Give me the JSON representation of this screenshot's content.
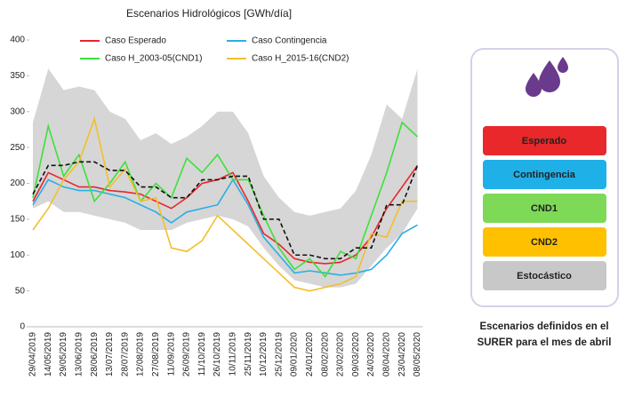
{
  "chart_data": {
    "type": "line",
    "title": "Escenarios Hidrológicos [GWh/día]",
    "categories": [
      "29/04/2019",
      "14/05/2019",
      "29/05/2019",
      "13/06/2019",
      "28/06/2019",
      "13/07/2019",
      "28/07/2019",
      "12/08/2019",
      "27/08/2019",
      "11/09/2019",
      "26/09/2019",
      "11/10/2019",
      "26/10/2019",
      "10/11/2019",
      "25/11/2019",
      "10/12/2019",
      "25/12/2019",
      "09/01/2020",
      "24/01/2020",
      "08/02/2020",
      "23/02/2020",
      "09/03/2020",
      "24/03/2020",
      "08/04/2020",
      "23/04/2020",
      "08/05/2020"
    ],
    "series": [
      {
        "name": "Caso Esperado",
        "color": "#e8262a",
        "values": [
          175,
          215,
          205,
          195,
          195,
          190,
          188,
          185,
          175,
          165,
          180,
          200,
          205,
          215,
          175,
          130,
          115,
          95,
          90,
          88,
          90,
          100,
          125,
          165,
          195,
          225
        ]
      },
      {
        "name": "Caso Contingencia",
        "color": "#29aee6",
        "values": [
          170,
          205,
          195,
          190,
          190,
          185,
          180,
          170,
          160,
          145,
          160,
          165,
          170,
          205,
          170,
          125,
          100,
          75,
          78,
          75,
          72,
          75,
          80,
          100,
          130,
          142
        ]
      },
      {
        "name": "Caso H_2003-05(CND1)",
        "color": "#3ee03a",
        "values": [
          180,
          280,
          210,
          240,
          175,
          200,
          230,
          175,
          200,
          180,
          235,
          215,
          240,
          205,
          205,
          155,
          110,
          80,
          95,
          70,
          105,
          95,
          155,
          215,
          285,
          265
        ]
      },
      {
        "name": "Caso H_2015-16(CND2)",
        "color": "#f2bf2a",
        "values": [
          135,
          165,
          205,
          230,
          290,
          195,
          220,
          175,
          180,
          110,
          105,
          120,
          155,
          135,
          115,
          95,
          75,
          55,
          50,
          55,
          60,
          70,
          130,
          125,
          175,
          175
        ]
      }
    ],
    "median": {
      "color": "#111111",
      "values": [
        185,
        225,
        225,
        230,
        230,
        218,
        218,
        195,
        195,
        180,
        180,
        205,
        205,
        210,
        210,
        150,
        150,
        100,
        100,
        95,
        95,
        110,
        110,
        170,
        170,
        225
      ]
    },
    "band": {
      "color": "#d6d6d6",
      "upper": [
        285,
        360,
        330,
        335,
        330,
        300,
        290,
        260,
        270,
        255,
        265,
        280,
        300,
        300,
        270,
        210,
        180,
        160,
        155,
        160,
        165,
        190,
        240,
        310,
        290,
        360
      ],
      "lower": [
        165,
        175,
        160,
        160,
        155,
        150,
        145,
        135,
        135,
        135,
        145,
        150,
        155,
        150,
        140,
        110,
        85,
        65,
        60,
        55,
        55,
        60,
        85,
        110,
        130,
        165
      ]
    },
    "ylim": [
      0,
      400
    ],
    "yticks": [
      0,
      50,
      100,
      150,
      200,
      250,
      300,
      350,
      400
    ]
  },
  "panel": {
    "items": [
      {
        "label": "Esperado",
        "color": "#e8282a"
      },
      {
        "label": "Contingencia",
        "color": "#1fb0e8"
      },
      {
        "label": "CND1",
        "color": "#7ed957"
      },
      {
        "label": "CND2",
        "color": "#ffc000"
      },
      {
        "label": "Estocástico",
        "color": "#c8c8c8"
      }
    ],
    "caption": [
      "Escenarios definidos en el",
      "SURER para el mes de abril"
    ]
  }
}
